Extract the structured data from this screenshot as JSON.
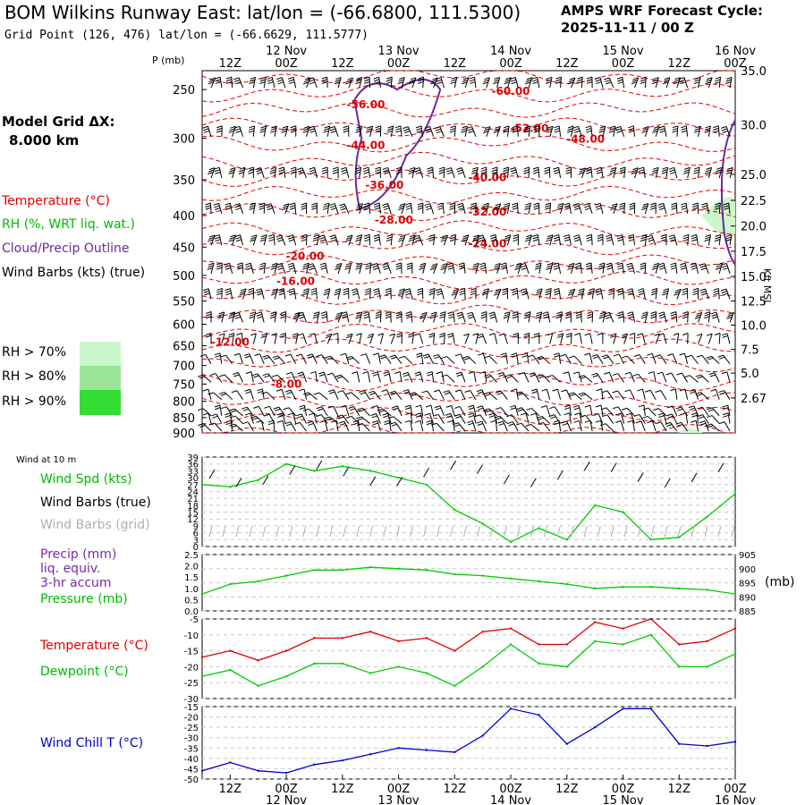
{
  "header": {
    "title": "BOM Wilkins Runway East:  lat/lon = (-66.6800, 111.5300)",
    "grid_point": "Grid Point (126, 476) lat/lon = (-66.6629, 111.5777)",
    "cycle_label": "AMPS WRF Forecast Cycle:",
    "cycle_value": "2025-11-11 / 00  Z"
  },
  "left_panel": {
    "model_grid": "Model Grid ΔX:",
    "model_grid_value": "8.000 km",
    "temperature": "Temperature (°C)",
    "rh": "RH (%, WRT liq. wat.)",
    "cloud": "Cloud/Precip Outline",
    "wind_barbs": "Wind Barbs (kts) (true)",
    "rh_legend": [
      {
        "label": "RH > 70%",
        "color": "#ccf7cc"
      },
      {
        "label": "RH > 80%",
        "color": "#99e699"
      },
      {
        "label": "RH > 90%",
        "color": "#33dd33"
      }
    ]
  },
  "time_axis": {
    "ticks": [
      "12Z",
      "00Z",
      "12Z",
      "00Z",
      "12Z",
      "00Z",
      "12Z",
      "00Z",
      "12Z",
      "00Z"
    ],
    "dates": [
      {
        "label": "12 Nov",
        "at_tick": 1
      },
      {
        "label": "13 Nov",
        "at_tick": 3
      },
      {
        "label": "14 Nov",
        "at_tick": 5
      },
      {
        "label": "15 Nov",
        "at_tick": 7
      },
      {
        "label": "16 Nov",
        "at_tick": 9
      }
    ],
    "start_hours": 6,
    "end_hours": 120
  },
  "colors": {
    "temperature": "#e00000",
    "dewpoint": "#00cc00",
    "cloud": "#6a2a9a",
    "windchill": "#0000cc",
    "wind_speed": "#00cc00",
    "grid_barbs": "#b0b0b0"
  },
  "chart_data": [
    {
      "type": "line",
      "name": "cross-section",
      "ylabel": "P (mb)",
      "y2label": "Kft MSL",
      "pressure_levels": [
        250,
        300,
        350,
        400,
        450,
        500,
        550,
        600,
        650,
        700,
        750,
        800,
        850,
        900
      ],
      "pressure_labels": [
        "250",
        "300",
        "350",
        "400",
        "450",
        "500",
        "550",
        "600",
        "650",
        "700",
        "750",
        "800",
        "850",
        "900"
      ],
      "height_ticks": [
        {
          "p": 233,
          "label": "35.0"
        },
        {
          "p": 285,
          "label": "30.0"
        },
        {
          "p": 343,
          "label": "25.0"
        },
        {
          "p": 378,
          "label": "22.5"
        },
        {
          "p": 416,
          "label": "20.0"
        },
        {
          "p": 457,
          "label": "17.5"
        },
        {
          "p": 502,
          "label": "15.0"
        },
        {
          "p": 550,
          "label": "12.5"
        },
        {
          "p": 602,
          "label": "10.0"
        },
        {
          "p": 659,
          "label": "7.5"
        },
        {
          "p": 720,
          "label": "5.0"
        },
        {
          "p": 790,
          "label": "2.67"
        }
      ],
      "temperature_labels": [
        {
          "text": "-56.00",
          "t": 41,
          "p": 268
        },
        {
          "text": "-60.00",
          "t": 72,
          "p": 255
        },
        {
          "text": "-52.00",
          "t": 76,
          "p": 293
        },
        {
          "text": "-48.00",
          "t": 88,
          "p": 305
        },
        {
          "text": "-44.00",
          "t": 41,
          "p": 312
        },
        {
          "text": "-40.00",
          "t": 67,
          "p": 352
        },
        {
          "text": "-36.00",
          "t": 45,
          "p": 362
        },
        {
          "text": "-32.00",
          "t": 67,
          "p": 400
        },
        {
          "text": "-28.00",
          "t": 47,
          "p": 412
        },
        {
          "text": "-24.00",
          "t": 67,
          "p": 450
        },
        {
          "text": "-20.00",
          "t": 28,
          "p": 472
        },
        {
          "text": "-16.00",
          "t": 26,
          "p": 518
        },
        {
          "text": "-12.00",
          "t": 12,
          "p": 650
        },
        {
          "text": "-8.00",
          "t": 24,
          "p": 760
        }
      ]
    },
    {
      "type": "line",
      "name": "wind",
      "title": "Wind at 10 m",
      "series_labels": [
        "Wind Spd (kts)",
        "Wind Barbs (true)",
        "Wind Barbs (grid)"
      ],
      "ylim": [
        0,
        39
      ],
      "y_ticks": [
        0,
        3,
        6,
        9,
        12,
        15,
        18,
        21,
        24,
        27,
        30,
        33,
        36,
        39
      ],
      "x": [
        6,
        12,
        18,
        24,
        30,
        36,
        42,
        48,
        54,
        60,
        66,
        72,
        78,
        84,
        90,
        96,
        102,
        108,
        114,
        120
      ],
      "speed": [
        27,
        26,
        29,
        36,
        33,
        35,
        33,
        30,
        27,
        16,
        10,
        2,
        8,
        3,
        18,
        15,
        3,
        4,
        13,
        23
      ]
    },
    {
      "type": "line",
      "name": "pressure-precip",
      "series_labels": [
        "Precip (mm)",
        "liq. equiv.",
        "3-hr accum",
        "Pressure (mb)"
      ],
      "y_label": "(mb)",
      "precip_ylim": [
        0,
        2.5
      ],
      "precip_ticks": [
        "0.0",
        "0.5",
        "1.0",
        "1.5",
        "2.0",
        "2.5"
      ],
      "pressure_ylim": [
        885,
        905
      ],
      "pressure_ticks": [
        "885",
        "890",
        "895",
        "900",
        "905"
      ],
      "x": [
        6,
        12,
        18,
        24,
        30,
        36,
        42,
        48,
        54,
        60,
        66,
        72,
        78,
        84,
        90,
        96,
        102,
        108,
        114,
        120
      ],
      "pressure": [
        891,
        894.5,
        895.5,
        897.5,
        899.5,
        899.5,
        900.5,
        900,
        899.5,
        898,
        897.5,
        896.5,
        895.5,
        894.5,
        893,
        893.5,
        893.5,
        893,
        892.5,
        891
      ]
    },
    {
      "type": "line",
      "name": "temperature-dewpoint",
      "series_labels": [
        "Temperature (°C)",
        "Dewpoint (°C)"
      ],
      "ylim": [
        -30,
        -5
      ],
      "y_ticks": [
        -30,
        -25,
        -20,
        -15,
        -10,
        -5
      ],
      "x": [
        6,
        12,
        18,
        24,
        30,
        36,
        42,
        48,
        54,
        60,
        66,
        72,
        78,
        84,
        90,
        96,
        102,
        108,
        114,
        120
      ],
      "temperature": [
        -17,
        -15,
        -18,
        -15,
        -11,
        -11,
        -9,
        -12,
        -11,
        -15,
        -9,
        -8,
        -13,
        -13,
        -6,
        -8,
        -5,
        -13,
        -12,
        -8
      ],
      "dewpoint": [
        -23,
        -21,
        -26,
        -23,
        -19,
        -19,
        -22,
        -20,
        -22,
        -26,
        -20,
        -13,
        -19,
        -20,
        -12,
        -13,
        -10,
        -20,
        -20,
        -16
      ]
    },
    {
      "type": "line",
      "name": "windchill",
      "series_labels": [
        "Wind Chill T (°C)"
      ],
      "ylim": [
        -50,
        -15
      ],
      "y_ticks": [
        -50,
        -45,
        -40,
        -35,
        -30,
        -25,
        -20,
        -15
      ],
      "x": [
        6,
        12,
        18,
        24,
        30,
        36,
        42,
        48,
        54,
        60,
        66,
        72,
        78,
        84,
        90,
        96,
        102,
        108,
        114,
        120
      ],
      "windchill": [
        -46,
        -42,
        -46,
        -47,
        -43,
        -41,
        -38,
        -35,
        -36,
        -37,
        -29,
        -16,
        -19,
        -33,
        -25,
        -16,
        -16,
        -33,
        -34,
        -32
      ]
    }
  ]
}
